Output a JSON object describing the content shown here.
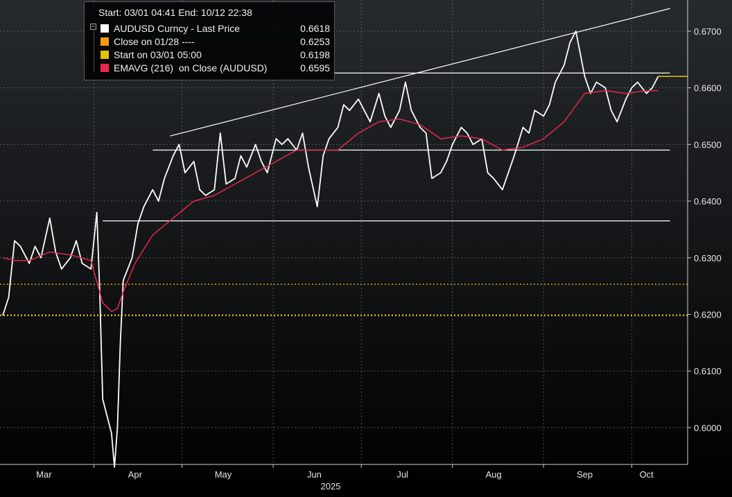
{
  "header": {
    "start_label": "Start:",
    "start_value": "03/01 04:41",
    "end_label": "End:",
    "end_value": "10/12 22:38"
  },
  "legend": [
    {
      "label": "AUDUSD Curncy - Last Price",
      "value": "0.6618",
      "color": "#ffffff"
    },
    {
      "label": "Close on 01/28 ----",
      "value": "0.6253",
      "color": "#f39c12"
    },
    {
      "label": "Start on 03/01 05:00",
      "value": "0.6198",
      "color": "#e6c200"
    },
    {
      "label": "EMAVG (216)  on Close (AUDUSD)",
      "value": "0.6595",
      "color": "#e8274a"
    }
  ],
  "colors": {
    "background_top": "#262a2e",
    "background_bottom": "#000000",
    "price": "#ffffff",
    "ema": "#e8274a",
    "close_line": "#f39c12",
    "start_line": "#e6c200",
    "level_line": "#ffffff"
  },
  "chart_data": {
    "type": "line",
    "title": "",
    "xlabel": "2025",
    "ylabel": "",
    "ylim": [
      0.5935,
      0.6755
    ],
    "xlim": [
      "2025-03-01",
      "2025-10-12"
    ],
    "y_ticks": [
      "0.6000",
      "0.6100",
      "0.6200",
      "0.6300",
      "0.6400",
      "0.6500",
      "0.6600",
      "0.6700"
    ],
    "x_ticks": [
      {
        "label": "Mar",
        "date": "2025-03-15"
      },
      {
        "label": "Apr",
        "date": "2025-04-15"
      },
      {
        "label": "May",
        "date": "2025-05-15"
      },
      {
        "label": "Jun",
        "date": "2025-06-15"
      },
      {
        "label": "Jul",
        "date": "2025-07-15"
      },
      {
        "label": "Aug",
        "date": "2025-08-15"
      },
      {
        "label": "Sep",
        "date": "2025-09-15"
      },
      {
        "label": "Oct",
        "date": "2025-10-06"
      }
    ],
    "year_label": "2025",
    "grid": true,
    "series": [
      {
        "name": "AUDUSD Curncy - Last Price",
        "x": [
          "2025-03-01",
          "2025-03-03",
          "2025-03-05",
          "2025-03-07",
          "2025-03-10",
          "2025-03-12",
          "2025-03-14",
          "2025-03-17",
          "2025-03-19",
          "2025-03-21",
          "2025-03-24",
          "2025-03-26",
          "2025-03-28",
          "2025-03-31",
          "2025-04-02",
          "2025-04-03",
          "2025-04-04",
          "2025-04-07",
          "2025-04-08",
          "2025-04-09",
          "2025-04-10",
          "2025-04-11",
          "2025-04-14",
          "2025-04-16",
          "2025-04-18",
          "2025-04-21",
          "2025-04-23",
          "2025-04-25",
          "2025-04-28",
          "2025-04-30",
          "2025-05-02",
          "2025-05-05",
          "2025-05-07",
          "2025-05-09",
          "2025-05-12",
          "2025-05-14",
          "2025-05-16",
          "2025-05-19",
          "2025-05-21",
          "2025-05-23",
          "2025-05-26",
          "2025-05-28",
          "2025-05-30",
          "2025-06-02",
          "2025-06-04",
          "2025-06-06",
          "2025-06-09",
          "2025-06-11",
          "2025-06-13",
          "2025-06-16",
          "2025-06-18",
          "2025-06-20",
          "2025-06-23",
          "2025-06-25",
          "2025-06-27",
          "2025-06-30",
          "2025-07-02",
          "2025-07-04",
          "2025-07-07",
          "2025-07-09",
          "2025-07-11",
          "2025-07-14",
          "2025-07-16",
          "2025-07-18",
          "2025-07-21",
          "2025-07-23",
          "2025-07-25",
          "2025-07-28",
          "2025-07-30",
          "2025-08-01",
          "2025-08-04",
          "2025-08-06",
          "2025-08-08",
          "2025-08-11",
          "2025-08-13",
          "2025-08-15",
          "2025-08-18",
          "2025-08-20",
          "2025-08-22",
          "2025-08-25",
          "2025-08-27",
          "2025-08-29",
          "2025-09-01",
          "2025-09-03",
          "2025-09-05",
          "2025-09-08",
          "2025-09-10",
          "2025-09-12",
          "2025-09-15",
          "2025-09-17",
          "2025-09-19",
          "2025-09-22",
          "2025-09-24",
          "2025-09-26",
          "2025-09-29",
          "2025-10-01",
          "2025-10-03",
          "2025-10-06",
          "2025-10-08",
          "2025-10-10"
        ],
        "values": [
          0.6198,
          0.623,
          0.633,
          0.632,
          0.629,
          0.632,
          0.63,
          0.637,
          0.631,
          0.628,
          0.63,
          0.633,
          0.629,
          0.628,
          0.638,
          0.624,
          0.605,
          0.599,
          0.593,
          0.6,
          0.615,
          0.626,
          0.63,
          0.636,
          0.639,
          0.642,
          0.64,
          0.644,
          0.648,
          0.65,
          0.645,
          0.647,
          0.642,
          0.641,
          0.642,
          0.652,
          0.643,
          0.644,
          0.648,
          0.646,
          0.65,
          0.647,
          0.645,
          0.651,
          0.65,
          0.651,
          0.649,
          0.652,
          0.646,
          0.639,
          0.648,
          0.651,
          0.653,
          0.657,
          0.656,
          0.658,
          0.656,
          0.654,
          0.659,
          0.655,
          0.653,
          0.656,
          0.661,
          0.656,
          0.653,
          0.652,
          0.644,
          0.645,
          0.647,
          0.65,
          0.653,
          0.652,
          0.65,
          0.651,
          0.645,
          0.644,
          0.642,
          0.645,
          0.648,
          0.653,
          0.652,
          0.656,
          0.655,
          0.657,
          0.661,
          0.664,
          0.668,
          0.67,
          0.662,
          0.659,
          0.661,
          0.66,
          0.656,
          0.654,
          0.658,
          0.66,
          0.661,
          0.659,
          0.66,
          0.662
        ]
      },
      {
        "name": "EMAVG (216)  on Close (AUDUSD)",
        "x": [
          "2025-03-01",
          "2025-03-05",
          "2025-03-10",
          "2025-03-17",
          "2025-03-24",
          "2025-03-31",
          "2025-04-04",
          "2025-04-07",
          "2025-04-09",
          "2025-04-11",
          "2025-04-15",
          "2025-04-21",
          "2025-04-28",
          "2025-05-05",
          "2025-05-12",
          "2025-05-19",
          "2025-05-26",
          "2025-06-02",
          "2025-06-09",
          "2025-06-16",
          "2025-06-23",
          "2025-06-30",
          "2025-07-07",
          "2025-07-14",
          "2025-07-21",
          "2025-07-28",
          "2025-08-04",
          "2025-08-11",
          "2025-08-18",
          "2025-08-25",
          "2025-09-01",
          "2025-09-08",
          "2025-09-15",
          "2025-09-22",
          "2025-09-29",
          "2025-10-06",
          "2025-10-10"
        ],
        "values": [
          0.63,
          0.6295,
          0.6295,
          0.631,
          0.6305,
          0.6295,
          0.622,
          0.6205,
          0.621,
          0.624,
          0.629,
          0.634,
          0.637,
          0.64,
          0.641,
          0.643,
          0.645,
          0.647,
          0.649,
          0.649,
          0.649,
          0.652,
          0.654,
          0.6545,
          0.6535,
          0.651,
          0.6515,
          0.651,
          0.649,
          0.6495,
          0.651,
          0.654,
          0.659,
          0.6595,
          0.659,
          0.6595,
          0.6595
        ]
      }
    ],
    "reference_lines": [
      {
        "name": "Close on 01/28 ----",
        "value": 0.6253
      },
      {
        "name": "Start on 03/01 05:00",
        "value": 0.6198
      }
    ],
    "trend_lines": [
      {
        "from": {
          "date": "2025-04-27",
          "value": 0.6515
        },
        "to": {
          "date": "2025-10-14",
          "value": 0.674
        }
      },
      {
        "from": {
          "date": "2025-04-04",
          "value": 0.6365
        },
        "to": {
          "date": "2025-10-14",
          "value": 0.6365
        }
      },
      {
        "from": {
          "date": "2025-04-21",
          "value": 0.649
        },
        "to": {
          "date": "2025-10-14",
          "value": 0.649
        }
      },
      {
        "from": {
          "date": "2025-06-21",
          "value": 0.6626
        },
        "to": {
          "date": "2025-10-14",
          "value": 0.6626
        }
      }
    ]
  }
}
